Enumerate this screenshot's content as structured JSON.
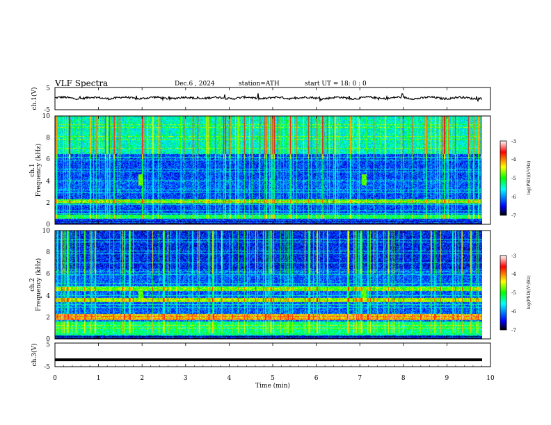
{
  "chart_data": {
    "type": "heatmap",
    "title": "VLF Spectra",
    "date": "Dec.6 , 2024",
    "station": "station=ATH",
    "start_ut": "start UT = 18: 0 : 0",
    "xlabel": "Time (min)",
    "xlim": [
      0,
      10
    ],
    "x_ticks": [
      "0",
      "1",
      "2",
      "3",
      "4",
      "5",
      "6",
      "7",
      "8",
      "9",
      "10"
    ],
    "colorbar": {
      "label": "log(PSD)(V²/Hz)",
      "range": [
        -7,
        -3
      ],
      "ticks": [
        "-3",
        "-4",
        "-5",
        "-6",
        "-7"
      ],
      "colors": [
        "#000000",
        "#0000ff",
        "#00ffff",
        "#00ff00",
        "#ffff00",
        "#ff0000",
        "#ffffff"
      ]
    },
    "panels": [
      {
        "name": "ch.1(V)",
        "kind": "waveform",
        "ylabel": "ch.1(V)",
        "ylim": [
          -5,
          5
        ],
        "y_ticks": [
          "5",
          "-5"
        ],
        "approx_level": 0.3
      },
      {
        "name": "ch.1",
        "kind": "spectrogram",
        "ylabel": [
          "ch.1",
          "Frequency (kHz)"
        ],
        "ylim": [
          0,
          10
        ],
        "y_ticks": [
          "10",
          "8",
          "6",
          "4",
          "2",
          "0"
        ],
        "bands": [
          {
            "freq_khz": [
              0,
              0.25
            ],
            "level": -6.8
          },
          {
            "freq_khz": [
              0.5,
              0.9
            ],
            "level": -5.2
          },
          {
            "freq_khz": [
              1.9,
              2.3
            ],
            "level": -4.9
          },
          {
            "freq_khz": [
              3.0,
              4.2
            ],
            "level": -6.2
          },
          {
            "freq_khz": [
              6.5,
              10
            ],
            "level": -5.5
          }
        ],
        "transients_min": [
          1.97,
          7.1
        ]
      },
      {
        "name": "ch.2",
        "kind": "spectrogram",
        "ylabel": [
          "ch.2",
          "Frequency (kHz)"
        ],
        "ylim": [
          0,
          10
        ],
        "y_ticks": [
          "10",
          "8",
          "6",
          "4",
          "2",
          "0"
        ],
        "bands": [
          {
            "freq_khz": [
              0,
              0.25
            ],
            "level": -6.8
          },
          {
            "freq_khz": [
              0.3,
              1.6
            ],
            "level": -5.3
          },
          {
            "freq_khz": [
              1.7,
              2.3
            ],
            "level": -4.3
          },
          {
            "freq_khz": [
              3.4,
              3.8
            ],
            "level": -4.6
          },
          {
            "freq_khz": [
              4.4,
              4.8
            ],
            "level": -4.8
          },
          {
            "freq_khz": [
              6.5,
              10
            ],
            "level": -6.4
          }
        ],
        "transients_min": [
          1.97,
          7.1
        ]
      },
      {
        "name": "ch.3(V)",
        "kind": "waveform",
        "ylabel": "ch.3(V)",
        "ylim": [
          -5,
          5
        ],
        "y_ticks": [
          "5",
          "-5"
        ],
        "approx_level": -2.1
      }
    ]
  }
}
